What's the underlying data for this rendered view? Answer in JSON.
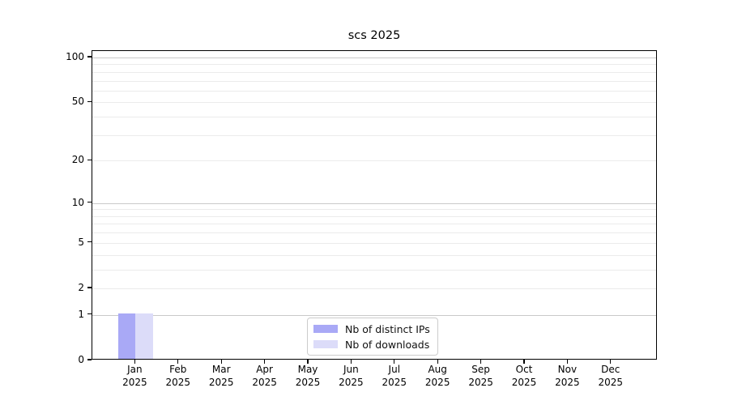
{
  "chart_data": {
    "type": "bar",
    "title": "scs 2025",
    "categories": [
      "Jan",
      "Feb",
      "Mar",
      "Apr",
      "May",
      "Jun",
      "Jul",
      "Aug",
      "Sep",
      "Oct",
      "Nov",
      "Dec"
    ],
    "year_label": "2025",
    "series": [
      {
        "name": "Nb of distinct IPs",
        "color": "#a9a9f6",
        "values": [
          1,
          0,
          0,
          0,
          0,
          0,
          0,
          0,
          0,
          0,
          0,
          0
        ]
      },
      {
        "name": "Nb of downloads",
        "color": "#dcdcf9",
        "values": [
          1,
          0,
          0,
          0,
          0,
          0,
          0,
          0,
          0,
          0,
          0,
          0
        ]
      }
    ],
    "y_axis": {
      "scale": "log1p",
      "labeled_ticks": [
        100,
        50,
        20,
        10,
        5,
        2,
        1,
        0
      ],
      "major_gridlines": [
        1,
        10,
        100
      ],
      "minor_gridlines": [
        2,
        3,
        4,
        5,
        6,
        7,
        8,
        9,
        20,
        30,
        40,
        50,
        60,
        70,
        80,
        90
      ],
      "range": [
        0,
        110
      ]
    },
    "legend": {
      "labels": [
        "Nb of distinct IPs",
        "Nb of downloads"
      ]
    },
    "colors": {
      "grid_major": "#c9c9c9",
      "grid_minor": "#ebebeb",
      "spine": "#000000",
      "text": "#000000"
    }
  }
}
